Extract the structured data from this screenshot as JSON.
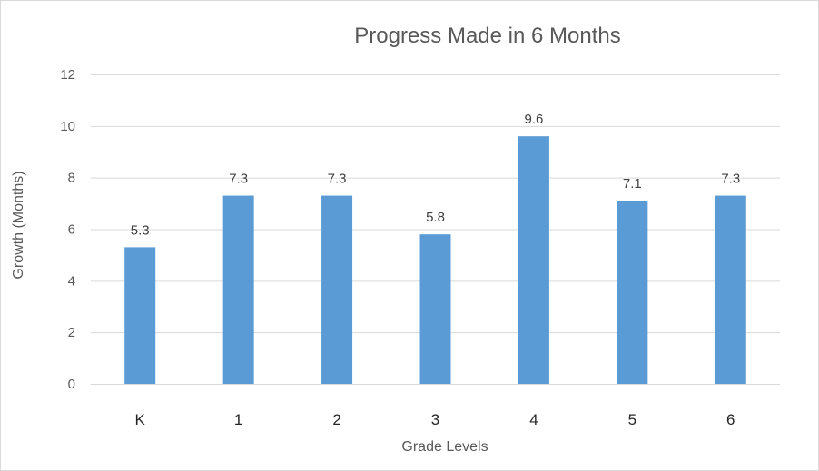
{
  "chart_data": {
    "type": "bar",
    "title": "Progress Made in 6 Months",
    "xlabel": "Grade Levels",
    "ylabel": "Growth (Months)",
    "categories": [
      "K",
      "1",
      "2",
      "3",
      "4",
      "5",
      "6"
    ],
    "values": [
      5.3,
      7.3,
      7.3,
      5.8,
      9.6,
      7.1,
      7.3
    ],
    "data_labels": [
      "5.3",
      "7.3",
      "7.3",
      "5.8",
      "9.6",
      "7.1",
      "7.3"
    ],
    "ylim": [
      0,
      12
    ],
    "yticks": [
      0,
      2,
      4,
      6,
      8,
      10,
      12
    ],
    "grid": true,
    "legend": "none",
    "bar_color": "#5b9bd5"
  }
}
